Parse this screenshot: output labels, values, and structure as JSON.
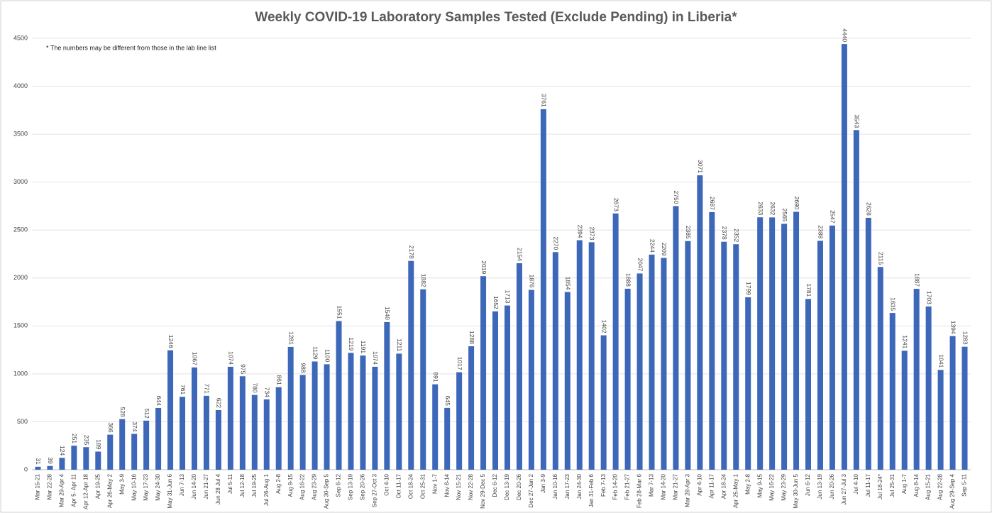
{
  "chart_data": {
    "type": "bar",
    "title": "Weekly COVID-19 Laboratory Samples Tested (Exclude Pending) in Liberia*",
    "annotation": "* The numbers may be different from those in the lab line list",
    "color": "#3d67b8",
    "grid": true,
    "ylim": [
      0,
      4500
    ],
    "yticks": [
      0,
      500,
      1000,
      1500,
      2000,
      2500,
      3000,
      3500,
      4000,
      4500
    ],
    "categories": [
      "Mar 15-21",
      "Mar 22-28",
      "Mar 29-Apr 4",
      "Apr 5- Apr 11",
      "Apr 12-Apr 18",
      "Apr 19-25",
      "Apr 26-May 2",
      "May 3-9",
      "May 10-16",
      "May 17-23",
      "May 24-30",
      "May 31-Jun 6",
      "Jun 7-13",
      "Jun 14-20",
      "Jun 21-27",
      "Jun 28 Jul 4",
      "Jul 5-11",
      "Jul 12-18",
      "Jul 19-25",
      "Jul 26-Aug 1",
      "Aug 2-8",
      "Aug 9-15",
      "Aug 16-22",
      "Aug 23-29",
      "Aug 30-Sep 5",
      "Sep 6-12",
      "Sep 13-19",
      "Sep 20-26",
      "Sep 27-Oct 3",
      "Oct 4-10",
      "Oct 11-17",
      "Oct 18-24",
      "Oct 25-31",
      "Nov 1-7",
      "Nov 8-14",
      "Nov 15-21",
      "Nov 22-28",
      "Nov 29-Dec 5",
      "Dec 6-12",
      "Dec 13-19",
      "Dec 20-26",
      "Dec 27-Jan 2",
      "Jan 3-9",
      "Jan 10-16",
      "Jan 17-23",
      "Jan 24-30",
      "Jan 31-Feb 6",
      "Feb 7-13",
      "Feb 14-20",
      "Feb 21-27",
      "Feb 28-Mar 6",
      "Mar 7-13",
      "Mar 14-20",
      "Mar 21-27",
      "Mar 28-Apr 3",
      "Apr 4-10",
      "Apr 11-17",
      "Apr 18-24",
      "Apr 25-May 1",
      "May 2-8",
      "May 9-15",
      "May 16-22",
      "May 23-29",
      "May 30-Jun 5",
      "Jun 6-12",
      "Jun 13-19",
      "Jun 20-26",
      "Jun 27-Jul 3",
      "Jul 4-10",
      "Jul 11-17",
      "Jul 18-24*",
      "Jul 25-31",
      "Aug 1-7",
      "Aug 8-14",
      "Aug 15-21",
      "Aug 22-28",
      "Aug 29-Sep 4",
      "Sep 5-11"
    ],
    "values": [
      31,
      39,
      124,
      251,
      235,
      189,
      366,
      528,
      374,
      512,
      644,
      1246,
      761,
      1067,
      771,
      622,
      1074,
      975,
      780,
      734,
      861,
      1281,
      988,
      1129,
      1100,
      1551,
      1219,
      1191,
      1074,
      1540,
      1211,
      2178,
      1882,
      891,
      645,
      1017,
      1288,
      2019,
      1652,
      1713,
      2154,
      1876,
      3761,
      2270,
      1854,
      2394,
      2373,
      1402,
      2673,
      1888,
      2047,
      2244,
      2209,
      2750,
      2385,
      3071,
      2687,
      2378,
      2352,
      1799,
      2633,
      2632,
      2565,
      2690,
      1781,
      2388,
      2547,
      4440,
      3543,
      2628,
      2115,
      1635,
      1241,
      1887,
      1703,
      1041,
      1394,
      1283
    ]
  }
}
